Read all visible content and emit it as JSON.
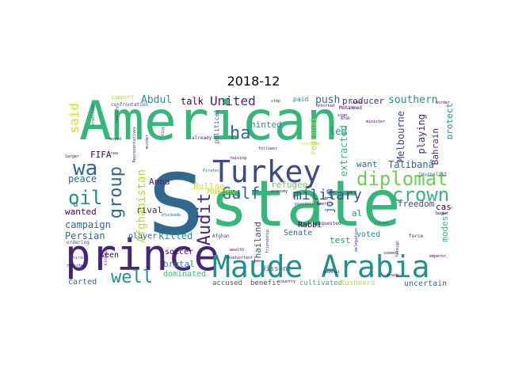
{
  "title": "2018-12",
  "colors": {
    "teal": "#20908d",
    "green": "#35b779",
    "darkpurple": "#440154",
    "purple": "#482677",
    "indigo": "#3e4a89",
    "blue": "#31688e",
    "lightgreen": "#6ece58",
    "yellow": "#d5e21a",
    "lime": "#b5de2b"
  },
  "words": {
    "american": "American",
    "state": "state",
    "s": "s",
    "prince": "prince",
    "turkey": "Turkey",
    "maude_arabia": "Maude Arabia",
    "wa": "wa",
    "diplomat": "diplomat",
    "crown": "crown",
    "gulf": "Gulf",
    "military": "military",
    "oil": "oil",
    "well": "well",
    "ha": "ha",
    "group": "group",
    "audit": "Audit",
    "united": "United",
    "said": "said",
    "afghanistan": "Afghanistan",
    "abdul": "Abdul",
    "talk": "talk",
    "push": "push",
    "producer": "producer",
    "southern": "southern",
    "hinted": "hinted",
    "refugee": "refugee",
    "led": "led",
    "join": "join",
    "extracted": "extracted",
    "regional": "regional",
    "melbourne": "Melbourne",
    "playing": "playing",
    "bahrain": "Bahrain",
    "protect": "protect",
    "talibana": "Talibanâ",
    "want": "want",
    "freedom": "freedom",
    "case": "case",
    "modest": "modest",
    "anna": "Anna",
    "bullae": "Bullae",
    "makeev": "Makeev",
    "peace": "peace",
    "wanted": "wanted",
    "campaign": "campaign",
    "persian": "Persian",
    "rival": "rival",
    "player": "player",
    "killed": "killed",
    "thailand": "Thailand",
    "rabbi": "Rabbi",
    "al": "al",
    "voted": "voted",
    "senate": "Senate",
    "test": "test",
    "soccer": "soccer",
    "brutal": "brutal",
    "seen": "seen",
    "carted": "carted",
    "dominated": "dominated",
    "accused": "accused",
    "benefit": "benefit",
    "cultivated": "cultivated",
    "kushnerd": "Kushnerd",
    "uncertain": "uncertain",
    "fifa": "FIFA",
    "u": "u",
    "dissent": "dissent",
    "support": "support",
    "confrontation": "confrontation",
    "political": "political",
    "paid": "paid",
    "already": "already",
    "mohammed": "Mohammed",
    "follower": "follower",
    "economy": "economy",
    "possibility": "possibility",
    "america": "America",
    "requested": "requested",
    "joined": "joined",
    "afghan": "Afghan",
    "journalist": "journalist",
    "force": "force",
    "seemed": "seemed",
    "emperor": "emperor",
    "kingdom": "kingdom",
    "ordering": "ordering",
    "hiring": "hiring",
    "raising": "raising",
    "blockade": "blockade",
    "pirates": "Pirates",
    "representatives": "Representatives",
    "tradition": "tradition",
    "moved": "moved",
    "larger": "larger",
    "new": "new",
    "tiny": "tiny",
    "minister": "minister",
    "border": "border",
    "arab": "Arab",
    "step": "step",
    "retorted": "retorted",
    "later": "later",
    "sign": "sign",
    "several": "several",
    "troop": "troop",
    "country": "country",
    "wealth": "wealth",
    "inadvertent": "inadvertent",
    "friendship": "friendship",
    "delegation": "delegation",
    "began": "began",
    "foreign": "foreign",
    "concrete": "concrete",
    "reality": "reality",
    "murder": "murder",
    "resisted": "resisted"
  }
}
